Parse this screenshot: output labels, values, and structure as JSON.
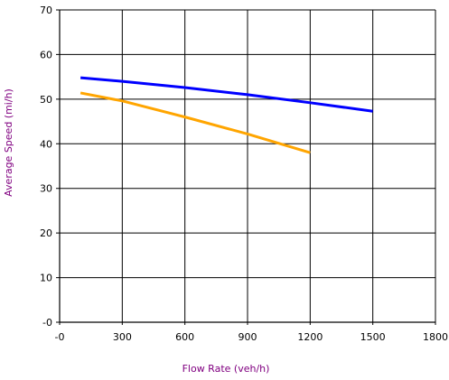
{
  "chart_data": {
    "type": "line",
    "title": "",
    "xlabel": "Flow Rate (veh/h)",
    "ylabel": "Average Speed (mi/h)",
    "xlim": [
      0,
      1800
    ],
    "ylim": [
      0,
      70
    ],
    "x_ticks": [
      0,
      300,
      600,
      900,
      1200,
      1500,
      1800
    ],
    "y_ticks": [
      0,
      10,
      20,
      30,
      40,
      50,
      60,
      70
    ],
    "x_tick_labels": [
      "-0",
      "300",
      "600",
      "900",
      "1200",
      "1500",
      "1800"
    ],
    "y_tick_labels": [
      "-0",
      "10",
      "20",
      "30",
      "40",
      "50",
      "60",
      "70"
    ],
    "grid": true,
    "legend": "none",
    "axis_title_color": "#800080",
    "series": [
      {
        "color": "#0000ff",
        "x": [
          100,
          300,
          600,
          900,
          1200,
          1500
        ],
        "y": [
          54.8,
          54.0,
          52.6,
          51.0,
          49.2,
          47.3
        ]
      },
      {
        "color": "#ffa500",
        "x": [
          100,
          300,
          600,
          900,
          1200
        ],
        "y": [
          51.4,
          49.6,
          46.0,
          42.2,
          38.0
        ]
      }
    ]
  }
}
